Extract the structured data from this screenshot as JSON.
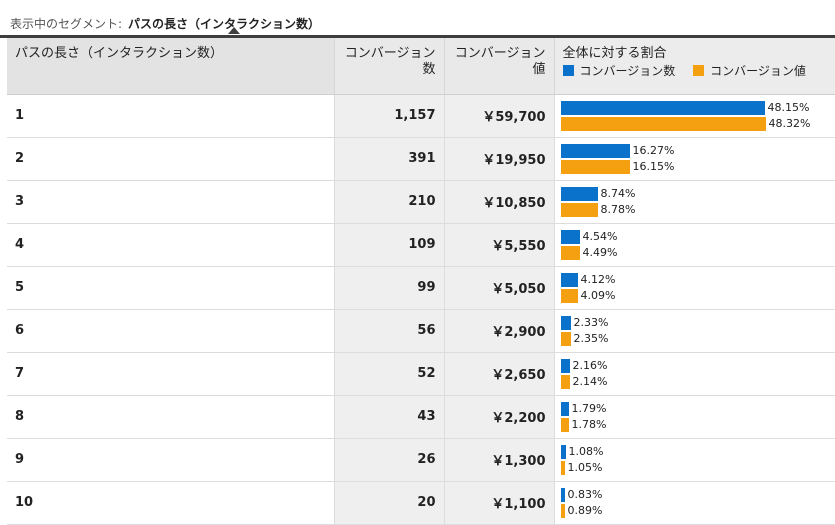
{
  "segment": {
    "label": "表示中のセグメント:",
    "value": "パスの長さ（インタラクション数）"
  },
  "table": {
    "headers": {
      "path": "パスの長さ（インタラクション数）",
      "conversions": "コンバージョン数",
      "value": "コンバージョン値",
      "share": "全体に対する割合"
    },
    "legend": {
      "conversions": "コンバージョン数",
      "value": "コンバージョン値"
    },
    "colors": {
      "conversions": "#0b72cc",
      "value": "#f5a011"
    },
    "rows": [
      {
        "path": "1",
        "conversions": "1,157",
        "value": "￥59,700",
        "conv_pct": "48.15%",
        "val_pct": "48.32%",
        "conv_share": 48.15,
        "val_share": 48.32
      },
      {
        "path": "2",
        "conversions": "391",
        "value": "￥19,950",
        "conv_pct": "16.27%",
        "val_pct": "16.15%",
        "conv_share": 16.27,
        "val_share": 16.15
      },
      {
        "path": "3",
        "conversions": "210",
        "value": "￥10,850",
        "conv_pct": "8.74%",
        "val_pct": "8.78%",
        "conv_share": 8.74,
        "val_share": 8.78
      },
      {
        "path": "4",
        "conversions": "109",
        "value": "￥5,550",
        "conv_pct": "4.54%",
        "val_pct": "4.49%",
        "conv_share": 4.54,
        "val_share": 4.49
      },
      {
        "path": "5",
        "conversions": "99",
        "value": "￥5,050",
        "conv_pct": "4.12%",
        "val_pct": "4.09%",
        "conv_share": 4.12,
        "val_share": 4.09
      },
      {
        "path": "6",
        "conversions": "56",
        "value": "￥2,900",
        "conv_pct": "2.33%",
        "val_pct": "2.35%",
        "conv_share": 2.33,
        "val_share": 2.35
      },
      {
        "path": "7",
        "conversions": "52",
        "value": "￥2,650",
        "conv_pct": "2.16%",
        "val_pct": "2.14%",
        "conv_share": 2.16,
        "val_share": 2.14
      },
      {
        "path": "8",
        "conversions": "43",
        "value": "￥2,200",
        "conv_pct": "1.79%",
        "val_pct": "1.78%",
        "conv_share": 1.79,
        "val_share": 1.78
      },
      {
        "path": "9",
        "conversions": "26",
        "value": "￥1,300",
        "conv_pct": "1.08%",
        "val_pct": "1.05%",
        "conv_share": 1.08,
        "val_share": 1.05
      },
      {
        "path": "10",
        "conversions": "20",
        "value": "￥1,100",
        "conv_pct": "0.83%",
        "val_pct": "0.89%",
        "conv_share": 0.83,
        "val_share": 0.89
      }
    ]
  }
}
